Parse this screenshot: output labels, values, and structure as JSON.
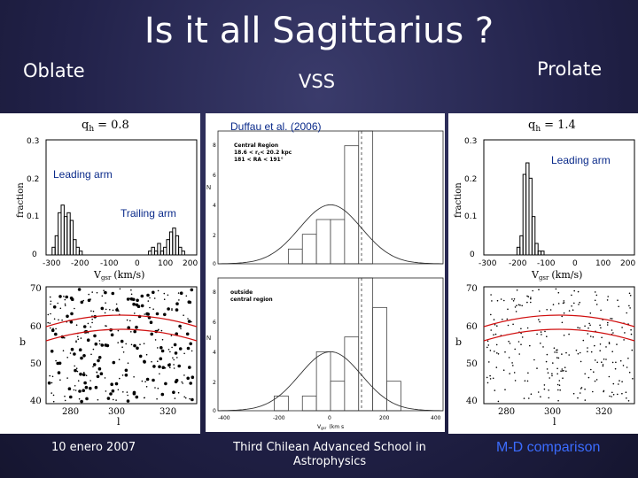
{
  "slide": {
    "title": "Is it all Sagittarius ?",
    "labels": {
      "left": "Oblate",
      "center": "VSS",
      "right": "Prolate"
    },
    "annotations": {
      "citation": "Duffau et al. (2006)",
      "leading_arm_left": "Leading arm",
      "trailing_arm": "Trailing arm",
      "leading_arm_right": "Leading arm"
    },
    "footer": {
      "date": "10 enero 2007",
      "school_line1": "Third Chilean Advanced School in",
      "school_line2": "Astrophysics",
      "comparison": "M-D  comparison"
    }
  },
  "left_panel": {
    "qh_label": "q",
    "qh_sub": "h",
    "qh_value": "= 0.8",
    "hist_ylabel": "fraction",
    "hist_xlabel": "V",
    "hist_xlabel_sub": "gsr",
    "hist_xlabel_unit": "(km/s)",
    "hist_yticks": [
      "0.3",
      "0.2",
      "0.1",
      "0"
    ],
    "hist_xticks": [
      "-300",
      "-200",
      "-100",
      "0",
      "100",
      "200"
    ],
    "map_ylabel": "b",
    "map_xlabel": "l",
    "map_yticks": [
      "70",
      "60",
      "50",
      "40"
    ],
    "map_xticks": [
      "280",
      "300",
      "320"
    ]
  },
  "right_panel": {
    "qh_label": "q",
    "qh_sub": "h",
    "qh_value": "= 1.4",
    "hist_ylabel": "fraction",
    "hist_xlabel": "V",
    "hist_xlabel_sub": "gsr",
    "hist_xlabel_unit": "(km/s)",
    "hist_yticks": [
      "0.3",
      "0.2",
      "0.1",
      "0"
    ],
    "hist_xticks": [
      "-300",
      "-200",
      "-100",
      "0",
      "100",
      "200"
    ],
    "map_ylabel": "b",
    "map_xlabel": "l",
    "map_yticks": [
      "70",
      "60",
      "50",
      "40"
    ],
    "map_xticks": [
      "280",
      "300",
      "320"
    ]
  },
  "center_panel": {
    "top_legend": [
      "Central Region",
      "18.6 < r",
      "< 20.2 kpc",
      "181 < RA < 191°"
    ],
    "top_legend_sub": "c",
    "bottom_legend": [
      "outside",
      "central region"
    ],
    "ylabel": "N",
    "top_yticks": [
      "8",
      "6",
      "4",
      "2",
      "0"
    ],
    "bottom_yticks": [
      "8",
      "6",
      "4",
      "2",
      "0"
    ],
    "xticks": [
      "-400",
      "-200",
      "0",
      "200",
      "400"
    ],
    "xlabel": "V",
    "xlabel_sub": "gsr",
    "xlabel_unit": "(km s"
  },
  "chart_data": [
    {
      "type": "bar",
      "title": "Oblate q_h = 0.8 velocity histogram",
      "xlabel": "Vgsr (km/s)",
      "ylabel": "fraction",
      "xlim": [
        -300,
        200
      ],
      "ylim": [
        0,
        0.3
      ],
      "bins_edges": [
        -300,
        -290,
        -280,
        -270,
        -260,
        -250,
        -240,
        -230,
        -220,
        -210,
        -200,
        -190,
        -180,
        -170,
        -160,
        -150,
        -140,
        -130,
        -120,
        -110,
        -100,
        -90,
        -80,
        -70,
        -60,
        -50,
        -40,
        -30,
        -20,
        -10,
        0,
        10,
        20,
        30,
        40,
        50,
        60,
        70,
        80,
        90,
        100,
        110,
        120,
        130,
        140,
        150,
        160,
        170,
        180,
        190,
        200
      ],
      "values": [
        0,
        0,
        0.02,
        0.05,
        0.11,
        0.13,
        0.1,
        0.11,
        0.09,
        0.04,
        0.02,
        0.01,
        0,
        0,
        0,
        0,
        0,
        0,
        0,
        0,
        0,
        0,
        0,
        0,
        0,
        0,
        0,
        0,
        0,
        0,
        0,
        0,
        0,
        0,
        0.01,
        0.02,
        0.01,
        0.03,
        0.01,
        0.02,
        0.04,
        0.06,
        0.07,
        0.05,
        0.02,
        0.01,
        0,
        0,
        0,
        0
      ]
    },
    {
      "type": "bar",
      "title": "Prolate q_h = 1.4 velocity histogram",
      "xlabel": "Vgsr (km/s)",
      "ylabel": "fraction",
      "xlim": [
        -300,
        200
      ],
      "ylim": [
        0,
        0.3
      ],
      "bins_edges": [
        -300,
        -290,
        -280,
        -270,
        -260,
        -250,
        -240,
        -230,
        -220,
        -210,
        -200,
        -190,
        -180,
        -170,
        -160,
        -150,
        -140,
        -130,
        -120,
        -110,
        -100,
        -90,
        -80,
        -70,
        -60,
        -50,
        -40,
        -30,
        -20,
        -10,
        0
      ],
      "values": [
        0,
        0,
        0,
        0,
        0,
        0,
        0,
        0,
        0,
        0,
        0,
        0.02,
        0.05,
        0.21,
        0.24,
        0.2,
        0.1,
        0.03,
        0.01,
        0.01,
        0,
        0,
        0,
        0,
        0,
        0,
        0,
        0,
        0,
        0
      ]
    },
    {
      "type": "bar",
      "title": "Central Region",
      "xlabel": "Vgsr (km s-1)",
      "ylabel": "N",
      "xlim": [
        -400,
        400
      ],
      "ylim": [
        0,
        9
      ],
      "bins_edges": [
        -400,
        -350,
        -300,
        -250,
        -200,
        -150,
        -100,
        -50,
        0,
        50,
        100,
        150,
        200,
        250,
        300,
        350,
        400
      ],
      "values": [
        0,
        0,
        0,
        0,
        0,
        1,
        2,
        3,
        3,
        8,
        9,
        0,
        0,
        0,
        0,
        0
      ]
    },
    {
      "type": "bar",
      "title": "outside central region",
      "xlabel": "Vgsr (km s-1)",
      "ylabel": "N",
      "xlim": [
        -400,
        400
      ],
      "ylim": [
        0,
        9
      ],
      "bins_edges": [
        -400,
        -350,
        -300,
        -250,
        -200,
        -150,
        -100,
        -50,
        0,
        50,
        100,
        150,
        200,
        250,
        300,
        350,
        400
      ],
      "values": [
        0,
        0,
        0,
        0,
        1,
        0,
        1,
        4,
        2,
        5,
        9,
        7,
        2,
        0,
        0,
        0
      ]
    }
  ]
}
